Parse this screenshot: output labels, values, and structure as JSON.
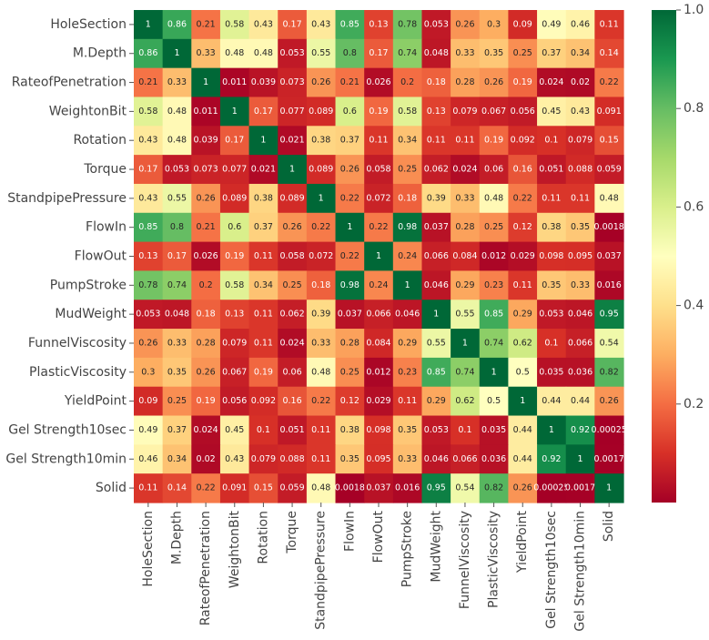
{
  "chart_data": {
    "type": "heatmap",
    "title": "",
    "colormap": "RdYlGn",
    "vmin": 0.0,
    "vmax": 1.0,
    "colorbar_ticks": [
      "0.2",
      "0.4",
      "0.6",
      "0.8",
      "1.0"
    ],
    "colorbar_tick_values": [
      0.2,
      0.4,
      0.6,
      0.8,
      1.0
    ],
    "labels": [
      "HoleSection",
      "M.Depth",
      "RateofPenetration",
      "WeightonBit",
      "Rotation",
      "Torque",
      "StandpipePressure",
      "FlowIn",
      "FlowOut",
      "PumpStroke",
      "MudWeight",
      "FunnelViscosity",
      "PlasticViscosity",
      "YieldPoint",
      "Gel Strength10sec",
      "Gel Strength10min",
      "Solid"
    ],
    "values": [
      [
        1,
        0.86,
        0.21,
        0.58,
        0.43,
        0.17,
        0.43,
        0.85,
        0.13,
        0.78,
        0.053,
        0.26,
        0.3,
        0.09,
        0.49,
        0.46,
        0.11
      ],
      [
        0.86,
        1,
        0.33,
        0.48,
        0.48,
        0.053,
        0.55,
        0.8,
        0.17,
        0.74,
        0.048,
        0.33,
        0.35,
        0.25,
        0.37,
        0.34,
        0.14
      ],
      [
        0.21,
        0.33,
        1,
        0.011,
        0.039,
        0.073,
        0.26,
        0.21,
        0.026,
        0.2,
        0.18,
        0.28,
        0.26,
        0.19,
        0.024,
        0.02,
        0.22
      ],
      [
        0.58,
        0.48,
        0.011,
        1,
        0.17,
        0.077,
        0.089,
        0.6,
        0.19,
        0.58,
        0.13,
        0.079,
        0.067,
        0.056,
        0.45,
        0.43,
        0.091
      ],
      [
        0.43,
        0.48,
        0.039,
        0.17,
        1,
        0.021,
        0.38,
        0.37,
        0.11,
        0.34,
        0.11,
        0.11,
        0.19,
        0.092,
        0.1,
        0.079,
        0.15
      ],
      [
        0.17,
        0.053,
        0.073,
        0.077,
        0.021,
        1,
        0.089,
        0.26,
        0.058,
        0.25,
        0.062,
        0.024,
        0.06,
        0.16,
        0.051,
        0.088,
        0.059
      ],
      [
        0.43,
        0.55,
        0.26,
        0.089,
        0.38,
        0.089,
        1,
        0.22,
        0.072,
        0.18,
        0.39,
        0.33,
        0.48,
        0.22,
        0.11,
        0.11,
        0.48
      ],
      [
        0.85,
        0.8,
        0.21,
        0.6,
        0.37,
        0.26,
        0.22,
        1,
        0.22,
        0.98,
        0.037,
        0.28,
        0.25,
        0.12,
        0.38,
        0.35,
        0.0018
      ],
      [
        0.13,
        0.17,
        0.026,
        0.19,
        0.11,
        0.058,
        0.072,
        0.22,
        1,
        0.24,
        0.066,
        0.084,
        0.012,
        0.029,
        0.098,
        0.095,
        0.037
      ],
      [
        0.78,
        0.74,
        0.2,
        0.58,
        0.34,
        0.25,
        0.18,
        0.98,
        0.24,
        1,
        0.046,
        0.29,
        0.23,
        0.11,
        0.35,
        0.33,
        0.016
      ],
      [
        0.053,
        0.048,
        0.18,
        0.13,
        0.11,
        0.062,
        0.39,
        0.037,
        0.066,
        0.046,
        1,
        0.55,
        0.85,
        0.29,
        0.053,
        0.046,
        0.95
      ],
      [
        0.26,
        0.33,
        0.28,
        0.079,
        0.11,
        0.024,
        0.33,
        0.28,
        0.084,
        0.29,
        0.55,
        1,
        0.74,
        0.62,
        0.1,
        0.066,
        0.54
      ],
      [
        0.3,
        0.35,
        0.26,
        0.067,
        0.19,
        0.06,
        0.48,
        0.25,
        0.012,
        0.23,
        0.85,
        0.74,
        1,
        0.5,
        0.035,
        0.036,
        0.82
      ],
      [
        0.09,
        0.25,
        0.19,
        0.056,
        0.092,
        0.16,
        0.22,
        0.12,
        0.029,
        0.11,
        0.29,
        0.62,
        0.5,
        1,
        0.44,
        0.44,
        0.26
      ],
      [
        0.49,
        0.37,
        0.024,
        0.45,
        0.1,
        0.051,
        0.11,
        0.38,
        0.098,
        0.35,
        0.053,
        0.1,
        0.035,
        0.44,
        1,
        0.92,
        0.00025
      ],
      [
        0.46,
        0.34,
        0.02,
        0.43,
        0.079,
        0.088,
        0.11,
        0.35,
        0.095,
        0.33,
        0.046,
        0.066,
        0.036,
        0.44,
        0.92,
        1,
        0.0017
      ],
      [
        0.11,
        0.14,
        0.22,
        0.091,
        0.15,
        0.059,
        0.48,
        0.0018,
        0.037,
        0.016,
        0.95,
        0.54,
        0.82,
        0.26,
        0.00025,
        0.0017,
        1
      ]
    ],
    "display_values": [
      [
        "1",
        "0.86",
        "0.21",
        "0.58",
        "0.43",
        "0.17",
        "0.43",
        "0.85",
        "0.13",
        "0.78",
        "0.053",
        "0.26",
        "0.3",
        "0.09",
        "0.49",
        "0.46",
        "0.11"
      ],
      [
        "0.86",
        "1",
        "0.33",
        "0.48",
        "0.48",
        "0.053",
        "0.55",
        "0.8",
        "0.17",
        "0.74",
        "0.048",
        "0.33",
        "0.35",
        "0.25",
        "0.37",
        "0.34",
        "0.14"
      ],
      [
        "0.21",
        "0.33",
        "1",
        "0.011",
        "0.039",
        "0.073",
        "0.26",
        "0.21",
        "0.026",
        "0.2",
        "0.18",
        "0.28",
        "0.26",
        "0.19",
        "0.024",
        "0.02",
        "0.22"
      ],
      [
        "0.58",
        "0.48",
        "0.011",
        "1",
        "0.17",
        "0.077",
        "0.089",
        "0.6",
        "0.19",
        "0.58",
        "0.13",
        "0.079",
        "0.067",
        "0.056",
        "0.45",
        "0.43",
        "0.091"
      ],
      [
        "0.43",
        "0.48",
        "0.039",
        "0.17",
        "1",
        "0.021",
        "0.38",
        "0.37",
        "0.11",
        "0.34",
        "0.11",
        "0.11",
        "0.19",
        "0.092",
        "0.1",
        "0.079",
        "0.15"
      ],
      [
        "0.17",
        "0.053",
        "0.073",
        "0.077",
        "0.021",
        "1",
        "0.089",
        "0.26",
        "0.058",
        "0.25",
        "0.062",
        "0.024",
        "0.06",
        "0.16",
        "0.051",
        "0.088",
        "0.059"
      ],
      [
        "0.43",
        "0.55",
        "0.26",
        "0.089",
        "0.38",
        "0.089",
        "1",
        "0.22",
        "0.072",
        "0.18",
        "0.39",
        "0.33",
        "0.48",
        "0.22",
        "0.11",
        "0.11",
        "0.48"
      ],
      [
        "0.85",
        "0.8",
        "0.21",
        "0.6",
        "0.37",
        "0.26",
        "0.22",
        "1",
        "0.22",
        "0.98",
        "0.037",
        "0.28",
        "0.25",
        "0.12",
        "0.38",
        "0.35",
        "0.0018"
      ],
      [
        "0.13",
        "0.17",
        "0.026",
        "0.19",
        "0.11",
        "0.058",
        "0.072",
        "0.22",
        "1",
        "0.24",
        "0.066",
        "0.084",
        "0.012",
        "0.029",
        "0.098",
        "0.095",
        "0.037"
      ],
      [
        "0.78",
        "0.74",
        "0.2",
        "0.58",
        "0.34",
        "0.25",
        "0.18",
        "0.98",
        "0.24",
        "1",
        "0.046",
        "0.29",
        "0.23",
        "0.11",
        "0.35",
        "0.33",
        "0.016"
      ],
      [
        "0.053",
        "0.048",
        "0.18",
        "0.13",
        "0.11",
        "0.062",
        "0.39",
        "0.037",
        "0.066",
        "0.046",
        "1",
        "0.55",
        "0.85",
        "0.29",
        "0.053",
        "0.046",
        "0.95"
      ],
      [
        "0.26",
        "0.33",
        "0.28",
        "0.079",
        "0.11",
        "0.024",
        "0.33",
        "0.28",
        "0.084",
        "0.29",
        "0.55",
        "1",
        "0.74",
        "0.62",
        "0.1",
        "0.066",
        "0.54"
      ],
      [
        "0.3",
        "0.35",
        "0.26",
        "0.067",
        "0.19",
        "0.06",
        "0.48",
        "0.25",
        "0.012",
        "0.23",
        "0.85",
        "0.74",
        "1",
        "0.5",
        "0.035",
        "0.036",
        "0.82"
      ],
      [
        "0.09",
        "0.25",
        "0.19",
        "0.056",
        "0.092",
        "0.16",
        "0.22",
        "0.12",
        "0.029",
        "0.11",
        "0.29",
        "0.62",
        "0.5",
        "1",
        "0.44",
        "0.44",
        "0.26"
      ],
      [
        "0.49",
        "0.37",
        "0.024",
        "0.45",
        "0.1",
        "0.051",
        "0.11",
        "0.38",
        "0.098",
        "0.35",
        "0.053",
        "0.1",
        "0.035",
        "0.44",
        "1",
        "0.92",
        "0.00025"
      ],
      [
        "0.46",
        "0.34",
        "0.02",
        "0.43",
        "0.079",
        "0.088",
        "0.11",
        "0.35",
        "0.095",
        "0.33",
        "0.046",
        "0.066",
        "0.036",
        "0.44",
        "0.92",
        "1",
        "0.0017"
      ],
      [
        "0.11",
        "0.14",
        "0.22",
        "0.091",
        "0.15",
        "0.059",
        "0.48",
        "0.0018",
        "0.037",
        "0.016",
        "0.95",
        "0.54",
        "0.82",
        "0.26",
        "0.00025",
        "0.0017",
        "1"
      ]
    ]
  }
}
